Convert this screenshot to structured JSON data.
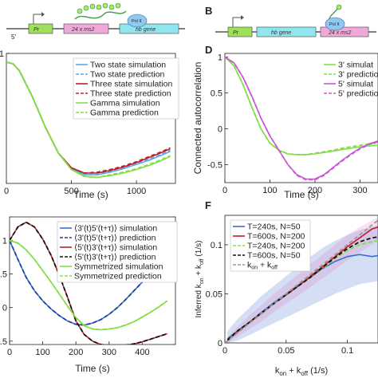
{
  "panels": {
    "A": {
      "label": "",
      "gene_labels": [
        "Pr",
        "24 x ms2",
        "hb gene",
        "Pol II"
      ],
      "five_prime": "5'"
    },
    "B": {
      "label": "B",
      "gene_labels": [
        "Pr",
        "hb gene",
        "24 x ms2",
        "Pol II"
      ]
    },
    "C": {
      "label": ""
    },
    "D": {
      "label": "D"
    },
    "E": {
      "label": ""
    },
    "F": {
      "label": "F"
    }
  },
  "colors": {
    "blue": "#5aa9e6",
    "red": "#c0202a",
    "green": "#80e040",
    "magenta": "#c857d6",
    "navy": "#2040a0",
    "black": "#111111",
    "dkblue": "#3a6fd0",
    "gray": "#999999"
  },
  "chart_data": [
    {
      "panel": "C",
      "type": "line",
      "xlabel": "Time (s)",
      "ylabel": "",
      "xlim": [
        0,
        1300
      ],
      "ylim": [
        -0.5,
        1.0
      ],
      "xticks": [
        0,
        500,
        1000
      ],
      "yticks": [
        1
      ],
      "legend_position": "top-right",
      "series": [
        {
          "name": "Two state simulation",
          "color": "#5aa9e6",
          "dash": false,
          "x": [
            0,
            50,
            100,
            200,
            300,
            400,
            500,
            600,
            700,
            800,
            900,
            1000,
            1100,
            1200,
            1260
          ],
          "y": [
            0.9,
            0.88,
            0.8,
            0.5,
            0.15,
            -0.15,
            -0.33,
            -0.4,
            -0.4,
            -0.37,
            -0.33,
            -0.28,
            -0.23,
            -0.17,
            -0.13
          ]
        },
        {
          "name": "Two state prediction",
          "color": "#5aa9e6",
          "dash": true,
          "x": [
            0,
            50,
            100,
            200,
            300,
            400,
            500,
            600,
            700,
            800,
            900,
            1000,
            1100,
            1200,
            1260
          ],
          "y": [
            0.9,
            0.88,
            0.8,
            0.5,
            0.15,
            -0.15,
            -0.33,
            -0.4,
            -0.4,
            -0.36,
            -0.32,
            -0.27,
            -0.22,
            -0.16,
            -0.12
          ]
        },
        {
          "name": "Three state simulation",
          "color": "#c0202a",
          "dash": false,
          "x": [
            0,
            50,
            100,
            200,
            300,
            400,
            500,
            600,
            700,
            800,
            900,
            1000,
            1100,
            1200,
            1260
          ],
          "y": [
            0.9,
            0.88,
            0.8,
            0.5,
            0.15,
            -0.15,
            -0.32,
            -0.38,
            -0.38,
            -0.35,
            -0.31,
            -0.26,
            -0.2,
            -0.14,
            -0.1
          ]
        },
        {
          "name": "Three state prediction",
          "color": "#c0202a",
          "dash": true,
          "x": [
            0,
            50,
            100,
            200,
            300,
            400,
            500,
            600,
            700,
            800,
            900,
            1000,
            1100,
            1200,
            1260
          ],
          "y": [
            0.9,
            0.88,
            0.8,
            0.5,
            0.15,
            -0.15,
            -0.32,
            -0.38,
            -0.37,
            -0.34,
            -0.3,
            -0.25,
            -0.19,
            -0.13,
            -0.09
          ]
        },
        {
          "name": "Gamma simulation",
          "color": "#80e040",
          "dash": false,
          "x": [
            0,
            50,
            100,
            200,
            300,
            400,
            500,
            600,
            700,
            800,
            900,
            1000,
            1100,
            1200,
            1260
          ],
          "y": [
            0.9,
            0.88,
            0.8,
            0.5,
            0.15,
            -0.15,
            -0.34,
            -0.42,
            -0.43,
            -0.41,
            -0.38,
            -0.34,
            -0.29,
            -0.23,
            -0.19
          ]
        },
        {
          "name": "Gamma prediction",
          "color": "#80e040",
          "dash": true,
          "x": [
            0,
            50,
            100,
            200,
            300,
            400,
            500,
            600,
            700,
            800,
            900,
            1000,
            1100,
            1200,
            1260
          ],
          "y": [
            0.9,
            0.88,
            0.8,
            0.5,
            0.15,
            -0.15,
            -0.34,
            -0.42,
            -0.43,
            -0.4,
            -0.37,
            -0.33,
            -0.28,
            -0.22,
            -0.18
          ]
        }
      ]
    },
    {
      "panel": "D",
      "type": "line",
      "xlabel": "Time (s)",
      "ylabel": "Connected autocorrelation",
      "xlim": [
        0,
        340
      ],
      "ylim": [
        -0.75,
        1.05
      ],
      "xticks": [
        0,
        100,
        200,
        300
      ],
      "yticks": [
        -0.5,
        0,
        0.5,
        1
      ],
      "legend_position": "top-right",
      "series": [
        {
          "name": "3' simulat",
          "color": "#80e040",
          "dash": false,
          "x": [
            0,
            20,
            40,
            60,
            80,
            100,
            120,
            140,
            160,
            180,
            200,
            220,
            240,
            260,
            280,
            300,
            320,
            340
          ],
          "y": [
            1.0,
            0.88,
            0.62,
            0.3,
            0.0,
            -0.2,
            -0.3,
            -0.35,
            -0.36,
            -0.36,
            -0.35,
            -0.33,
            -0.31,
            -0.29,
            -0.27,
            -0.25,
            -0.24,
            -0.23
          ]
        },
        {
          "name": "3' prediction",
          "color": "#80e040",
          "dash": true,
          "x": [
            0,
            20,
            40,
            60,
            80,
            100,
            120,
            140,
            160,
            180,
            200,
            220,
            240,
            260,
            280,
            300,
            320,
            340
          ],
          "y": [
            1.0,
            0.88,
            0.62,
            0.3,
            0.0,
            -0.2,
            -0.3,
            -0.35,
            -0.36,
            -0.36,
            -0.34,
            -0.32,
            -0.3,
            -0.27,
            -0.25,
            -0.23,
            -0.21,
            -0.2
          ]
        },
        {
          "name": "5' simulat",
          "color": "#c857d6",
          "dash": false,
          "x": [
            0,
            20,
            40,
            60,
            80,
            100,
            120,
            140,
            160,
            180,
            200,
            220,
            240,
            260,
            280,
            300,
            320,
            340
          ],
          "y": [
            1.0,
            0.92,
            0.72,
            0.45,
            0.15,
            -0.1,
            -0.3,
            -0.5,
            -0.64,
            -0.7,
            -0.7,
            -0.64,
            -0.54,
            -0.44,
            -0.35,
            -0.27,
            -0.21,
            -0.17
          ]
        },
        {
          "name": "5' predictio",
          "color": "#c857d6",
          "dash": true,
          "x": [
            0,
            20,
            40,
            60,
            80,
            100,
            120,
            140,
            160,
            180,
            200,
            220,
            240,
            260,
            280,
            300,
            320,
            340
          ],
          "y": [
            1.0,
            0.92,
            0.72,
            0.45,
            0.15,
            -0.1,
            -0.3,
            -0.5,
            -0.65,
            -0.71,
            -0.71,
            -0.65,
            -0.55,
            -0.45,
            -0.36,
            -0.28,
            -0.22,
            -0.18
          ]
        }
      ]
    },
    {
      "panel": "E",
      "type": "line",
      "xlabel": "Time (s)",
      "ylabel": "",
      "xlim": [
        0,
        500
      ],
      "ylim": [
        -0.55,
        1.35
      ],
      "xticks": [
        0,
        100,
        200,
        300,
        400
      ],
      "yticks": [
        -0.5,
        0,
        0.5,
        1
      ],
      "legend_position": "top-right",
      "series": [
        {
          "name": "⟨3'(t)5'(t+τ)⟩ simulation",
          "color": "#3a6fd0",
          "dash": false,
          "x": [
            0,
            25,
            50,
            75,
            100,
            125,
            150,
            175,
            200,
            225,
            250,
            275,
            300,
            325,
            350,
            375,
            400,
            425,
            450,
            475
          ],
          "y": [
            1.0,
            0.72,
            0.45,
            0.25,
            0.1,
            -0.02,
            -0.12,
            -0.2,
            -0.25,
            -0.26,
            -0.23,
            -0.18,
            -0.1,
            0.0,
            0.12,
            0.25,
            0.38,
            0.5,
            0.62,
            0.73
          ]
        },
        {
          "name": "⟨3'(t)5'(t+τ)⟩ prediction",
          "color": "#2040a0",
          "dash": true,
          "x": [
            0,
            25,
            50,
            75,
            100,
            125,
            150,
            175,
            200,
            225,
            250,
            275,
            300,
            325,
            350,
            375,
            400,
            425,
            450,
            475
          ],
          "y": [
            1.0,
            0.72,
            0.45,
            0.25,
            0.1,
            -0.02,
            -0.12,
            -0.2,
            -0.25,
            -0.26,
            -0.23,
            -0.18,
            -0.1,
            0.0,
            0.12,
            0.25,
            0.38,
            0.5,
            0.62,
            0.73
          ]
        },
        {
          "name": "⟨5'(t)3'(t+τ)⟩ simulation",
          "color": "#c0202a",
          "dash": false,
          "x": [
            0,
            25,
            50,
            75,
            100,
            125,
            150,
            175,
            200,
            225,
            250,
            275,
            300,
            325,
            350,
            375,
            400,
            425,
            450,
            475
          ],
          "y": [
            1.0,
            1.2,
            1.27,
            1.2,
            1.02,
            0.78,
            0.48,
            0.15,
            -0.2,
            -0.4,
            -0.5,
            -0.55,
            -0.57,
            -0.57,
            -0.56,
            -0.54,
            -0.51,
            -0.47,
            -0.43,
            -0.39
          ]
        },
        {
          "name": "⟨5'(t)3'(t+τ)⟩ prediction",
          "color": "#111111",
          "dash": true,
          "x": [
            0,
            25,
            50,
            75,
            100,
            125,
            150,
            175,
            200,
            225,
            250,
            275,
            300,
            325,
            350,
            375,
            400,
            425,
            450,
            475
          ],
          "y": [
            1.0,
            1.2,
            1.27,
            1.2,
            1.02,
            0.78,
            0.48,
            0.15,
            -0.2,
            -0.4,
            -0.5,
            -0.55,
            -0.57,
            -0.57,
            -0.56,
            -0.54,
            -0.51,
            -0.47,
            -0.43,
            -0.39
          ]
        },
        {
          "name": "Symmetrized simulation",
          "color": "#80e040",
          "dash": false,
          "x": [
            0,
            25,
            50,
            75,
            100,
            125,
            150,
            175,
            200,
            225,
            250,
            275,
            300,
            325,
            350,
            375,
            400,
            425,
            450,
            475
          ],
          "y": [
            1.0,
            0.96,
            0.86,
            0.72,
            0.55,
            0.38,
            0.2,
            0.02,
            -0.15,
            -0.27,
            -0.32,
            -0.33,
            -0.32,
            -0.3,
            -0.26,
            -0.21,
            -0.14,
            -0.07,
            0.01,
            0.1
          ]
        },
        {
          "name": "Symmetrized prediction",
          "color": "#80e040",
          "dash": true,
          "x": [
            0,
            25,
            50,
            75,
            100,
            125,
            150,
            175,
            200,
            225,
            250,
            275,
            300,
            325,
            350,
            375,
            400,
            425,
            450,
            475
          ],
          "y": [
            1.0,
            0.96,
            0.86,
            0.72,
            0.55,
            0.38,
            0.2,
            0.02,
            -0.15,
            -0.27,
            -0.32,
            -0.33,
            -0.32,
            -0.3,
            -0.26,
            -0.21,
            -0.14,
            -0.07,
            0.01,
            0.1
          ]
        }
      ]
    },
    {
      "panel": "F",
      "type": "line",
      "xlabel": "k_on + k_off (1/s)",
      "ylabel": "Inferred k_on + k_off (1/s)",
      "xlim": [
        0,
        0.125
      ],
      "ylim": [
        0,
        0.13
      ],
      "xticks": [
        0,
        0.05,
        0.1
      ],
      "yticks": [
        0,
        0.05,
        0.1
      ],
      "legend_position": "top-left",
      "series": [
        {
          "name": "T=240s, N=50",
          "color": "#3a6fd0",
          "dash": false,
          "x": [
            0.002,
            0.01,
            0.02,
            0.03,
            0.04,
            0.05,
            0.06,
            0.07,
            0.08,
            0.09,
            0.1,
            0.11,
            0.12,
            0.125
          ],
          "y": [
            0.004,
            0.012,
            0.021,
            0.031,
            0.041,
            0.05,
            0.059,
            0.067,
            0.076,
            0.083,
            0.088,
            0.09,
            0.088,
            0.089
          ],
          "band": {
            "color": "#3a6fd0",
            "lo": [
              0.0,
              0.002,
              0.008,
              0.014,
              0.02,
              0.026,
              0.032,
              0.038,
              0.044,
              0.05,
              0.055,
              0.06,
              0.062,
              0.063
            ],
            "hi": [
              0.012,
              0.024,
              0.036,
              0.048,
              0.058,
              0.068,
              0.078,
              0.088,
              0.097,
              0.104,
              0.11,
              0.115,
              0.118,
              0.12
            ]
          }
        },
        {
          "name": "T=600s, N=200",
          "color": "#c0202a",
          "dash": false,
          "x": [
            0.002,
            0.01,
            0.02,
            0.03,
            0.04,
            0.05,
            0.06,
            0.07,
            0.08,
            0.09,
            0.1,
            0.11,
            0.12,
            0.125
          ],
          "y": [
            0.002,
            0.011,
            0.021,
            0.03,
            0.04,
            0.049,
            0.058,
            0.068,
            0.078,
            0.088,
            0.098,
            0.107,
            0.116,
            0.118
          ],
          "band": {
            "color": "#e070c0",
            "lo": [
              0.0,
              0.006,
              0.014,
              0.022,
              0.031,
              0.04,
              0.048,
              0.057,
              0.066,
              0.075,
              0.084,
              0.092,
              0.1,
              0.104
            ],
            "hi": [
              0.006,
              0.016,
              0.028,
              0.039,
              0.05,
              0.06,
              0.07,
              0.08,
              0.09,
              0.1,
              0.11,
              0.118,
              0.125,
              0.128
            ]
          }
        },
        {
          "name": "T=240s, N=200",
          "color": "#80e040",
          "dash": true,
          "x": [
            0.002,
            0.01,
            0.02,
            0.03,
            0.04,
            0.05,
            0.06,
            0.07,
            0.08,
            0.09,
            0.1,
            0.11,
            0.12,
            0.125
          ],
          "y": [
            0.003,
            0.012,
            0.021,
            0.031,
            0.04,
            0.049,
            0.058,
            0.067,
            0.076,
            0.086,
            0.094,
            0.1,
            0.103,
            0.104
          ]
        },
        {
          "name": "T=600s, N=50",
          "color": "#111111",
          "dash": true,
          "x": [
            0.002,
            0.01,
            0.02,
            0.03,
            0.04,
            0.05,
            0.06,
            0.07,
            0.08,
            0.09,
            0.1,
            0.11,
            0.12,
            0.125
          ],
          "y": [
            0.003,
            0.012,
            0.021,
            0.031,
            0.04,
            0.049,
            0.058,
            0.067,
            0.077,
            0.087,
            0.096,
            0.103,
            0.107,
            0.108
          ]
        },
        {
          "name": "k_on + k_off",
          "color": "#999999",
          "dash": true,
          "x": [
            0,
            0.125
          ],
          "y": [
            0,
            0.125
          ]
        }
      ]
    }
  ]
}
